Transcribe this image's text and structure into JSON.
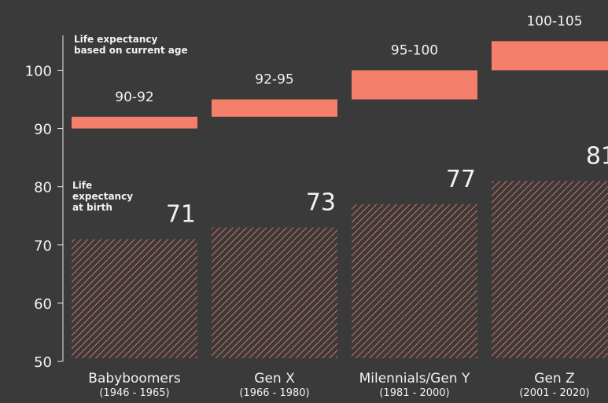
{
  "chart_data": {
    "type": "bar",
    "categories": [
      "Babyboomers",
      "Gen X",
      "Milennials/Gen Y",
      "Gen Z"
    ],
    "category_years": [
      "(1946 - 1965)",
      "(1966 - 1980)",
      "(1981 - 2000)",
      "(2001 - 2020)"
    ],
    "ylim": [
      50,
      106
    ],
    "yticks": [
      50,
      60,
      70,
      80,
      90,
      100
    ],
    "series": [
      {
        "name": "Life expectancy at birth",
        "name_lines": [
          "Life",
          "expectancy",
          "at birth"
        ],
        "color": "#f47f6b",
        "hatched": true,
        "values": [
          71,
          73,
          77,
          81
        ]
      },
      {
        "name": "Life expectancy based on current age",
        "name_lines": [
          "Life expectancy",
          "based on current age"
        ],
        "color": "#f47f6b",
        "range": true,
        "low": [
          90,
          92,
          95,
          100
        ],
        "high": [
          92,
          95,
          100,
          105
        ],
        "range_labels": [
          "90-92",
          "92-95",
          "95-100",
          "100-105"
        ]
      }
    ]
  }
}
